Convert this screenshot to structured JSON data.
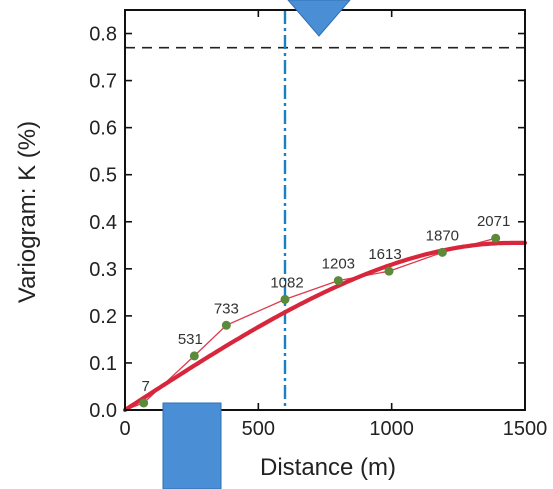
{
  "chart_data": {
    "type": "line",
    "xlabel": "Distance (m)",
    "ylabel": "Variogram: K (%)",
    "xlim": [
      0,
      1500
    ],
    "ylim": [
      0,
      0.85
    ],
    "x_ticks": [
      0,
      500,
      1000,
      1500
    ],
    "x_tick_labels": [
      "0",
      "500",
      "1000",
      "1500"
    ],
    "y_ticks": [
      0.0,
      0.1,
      0.2,
      0.3,
      0.4,
      0.5,
      0.6,
      0.7,
      0.8
    ],
    "y_tick_labels": [
      "0.0",
      "0.1",
      "0.2",
      "0.3",
      "0.4",
      "0.5",
      "0.6",
      "0.7",
      "0.8"
    ],
    "grid": false,
    "series": [
      {
        "role": "experimental",
        "color": "#5a8a3a",
        "points": [
          {
            "x": 70,
            "y": 0.015,
            "label": "7"
          },
          {
            "x": 260,
            "y": 0.115,
            "label": "531"
          },
          {
            "x": 380,
            "y": 0.18,
            "label": "733"
          },
          {
            "x": 600,
            "y": 0.235,
            "label": "1082"
          },
          {
            "x": 800,
            "y": 0.275,
            "label": "1203"
          },
          {
            "x": 990,
            "y": 0.295,
            "label": "1613"
          },
          {
            "x": 1190,
            "y": 0.335,
            "label": "1870"
          },
          {
            "x": 1390,
            "y": 0.365,
            "label": "2071"
          }
        ]
      },
      {
        "role": "model",
        "color": "#d8263c",
        "sill": 0.355,
        "range": 1450
      }
    ],
    "reference_lines": [
      {
        "orientation": "horizontal",
        "value": 0.77,
        "style": "dashed",
        "color": "#222222"
      },
      {
        "orientation": "vertical",
        "value": 600,
        "style": "dashdot",
        "color": "#1a7fc4"
      }
    ]
  },
  "overlays": {
    "top_marker": {
      "shape": "down-triangle",
      "color": "#4a8fd6"
    },
    "bottom_marker": {
      "shape": "rectangle",
      "color": "#4a8fd6"
    }
  }
}
